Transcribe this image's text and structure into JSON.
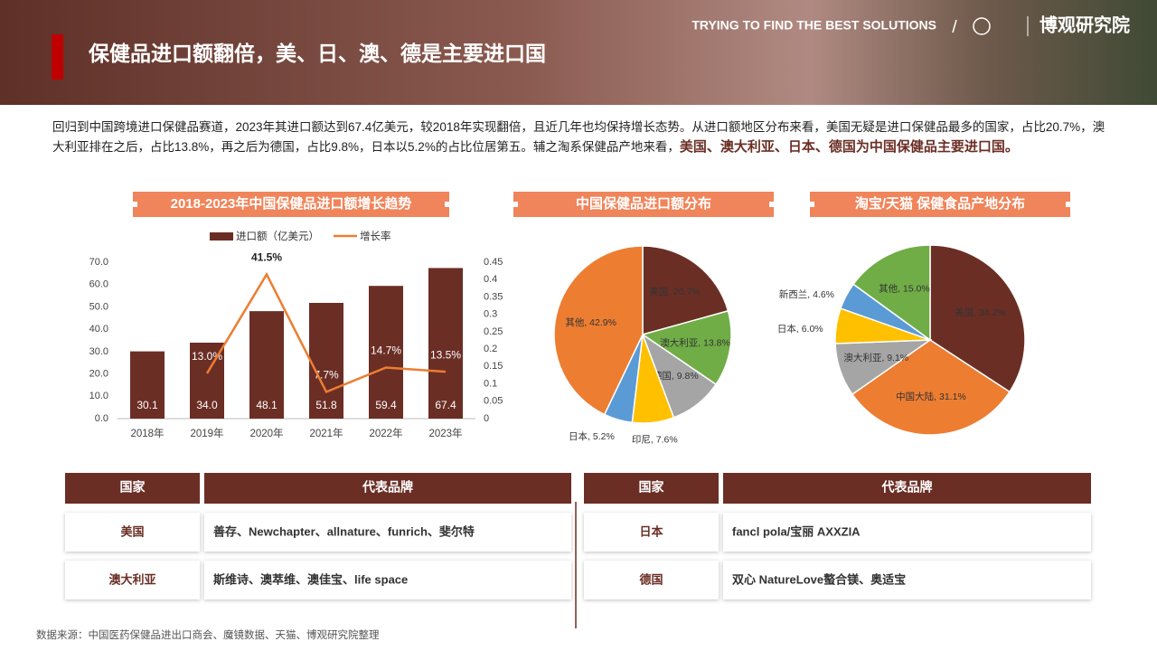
{
  "header": {
    "tagline": "TRYING TO FIND THE BEST SOLUTIONS",
    "brand": "博观研究院",
    "title": "保健品进口额翻倍，美、日、澳、德是主要进口国"
  },
  "intro": {
    "text": "回归到中国跨境进口保健品赛道，2023年其进口额达到67.4亿美元，较2018年实现翻倍，且近几年也均保持增长态势。从进口额地区分布来看，美国无疑是进口保健品最多的国家，占比20.7%，澳大利亚排在之后，占比13.8%，再之后为德国，占比9.8%，日本以5.2%的占比位居第五。辅之淘系保健品产地来看，",
    "highlight": "美国、澳大利亚、日本、德国为中国保健品主要进口国。"
  },
  "chart_data": [
    {
      "type": "bar",
      "title": "2018-2023年中国保健品进口额增长趋势",
      "categories": [
        "2018年",
        "2019年",
        "2020年",
        "2021年",
        "2022年",
        "2023年"
      ],
      "series": [
        {
          "name": "进口额（亿美元）",
          "color": "#6b2e25",
          "type": "bar",
          "values": [
            30.1,
            34.0,
            48.1,
            51.8,
            59.4,
            67.4
          ],
          "value_labels": [
            "30.1",
            "34.0",
            "48.1",
            "51.8",
            "59.4",
            "67.4"
          ]
        },
        {
          "name": "增长率",
          "color": "#ed7d31",
          "type": "line",
          "axis": "y2",
          "values": [
            null,
            0.13,
            0.415,
            0.077,
            0.147,
            0.135
          ],
          "value_labels": [
            null,
            "13.0%",
            "41.5%",
            "7.7%",
            "14.7%",
            "13.5%"
          ]
        }
      ],
      "ylim": [
        0,
        70
      ],
      "yticks": [
        {
          "value": 0,
          "label": "0.0"
        },
        {
          "value": 10,
          "label": "10.0"
        },
        {
          "value": 20,
          "label": "20.0"
        },
        {
          "value": 30,
          "label": "30.0"
        },
        {
          "value": 40,
          "label": "40.0"
        },
        {
          "value": 50,
          "label": "50.0"
        },
        {
          "value": 60,
          "label": "60.0"
        },
        {
          "value": 70,
          "label": "70.0"
        }
      ],
      "y2lim": [
        0,
        0.45
      ],
      "y2ticks": [
        0,
        0.05,
        0.1,
        0.15,
        0.2,
        0.25,
        0.3,
        0.35,
        0.4,
        0.45
      ],
      "legend": "top"
    },
    {
      "type": "pie",
      "title": "中国保健品进口额分布",
      "values": [
        20.7,
        13.8,
        9.8,
        7.6,
        5.2,
        42.9
      ],
      "value_labels": [
        "美国, 20.7%",
        "澳大利亚, 13.8%",
        "德国, 9.8%",
        "印尼, 7.6%",
        "日本, 5.2%",
        "其他, 42.9%"
      ],
      "colors": [
        "#6b2e25",
        "#70ad47",
        "#a5a5a5",
        "#ffc000",
        "#5b9bd5",
        "#ed7d31"
      ]
    },
    {
      "type": "pie",
      "title": "淘宝/天猫 保健食品产地分布",
      "values": [
        34.2,
        31.1,
        9.1,
        6.0,
        4.6,
        15.0
      ],
      "value_labels": [
        "美国, 34.2%",
        "中国大陆, 31.1%",
        "澳大利亚, 9.1%",
        "日本, 6.0%",
        "新西兰, 4.6%",
        "其他, 15.0%"
      ],
      "colors": [
        "#6b2e25",
        "#ed7d31",
        "#a5a5a5",
        "#ffc000",
        "#5b9bd5",
        "#70ad47"
      ]
    }
  ],
  "tables": [
    {
      "headers": [
        "国家",
        "代表品牌"
      ],
      "rows": [
        [
          "美国",
          "善存、Newchapter、allnature、funrich、斐尔特"
        ],
        [
          "澳大利亚",
          "斯维诗、澳萃维、澳佳宝、life space"
        ]
      ]
    },
    {
      "headers": [
        "国家",
        "代表品牌"
      ],
      "rows": [
        [
          "日本",
          "fancl pola/宝丽 AXXZIA"
        ],
        [
          "德国",
          "双心  NatureLove螯合镁、奥适宝"
        ]
      ]
    }
  ],
  "source": "数据来源：中国医药保健品进出口商会、魔镜数据、天猫、博观研究院整理"
}
